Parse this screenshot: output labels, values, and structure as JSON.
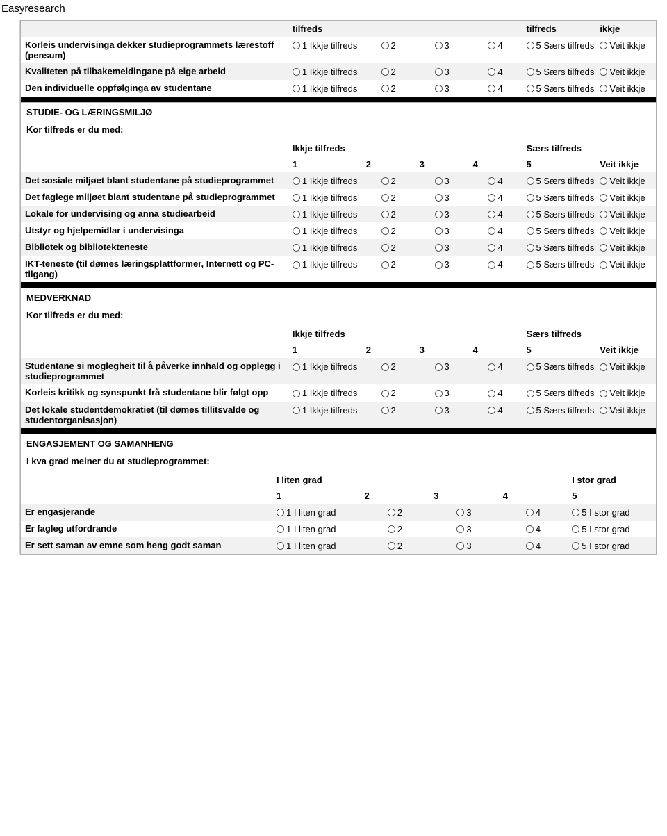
{
  "page_title": "Easyresearch",
  "scale_labels": {
    "low": "Ikkje tilfreds",
    "high": "Særs tilfreds",
    "na": "Veit ikkje",
    "low_deg": "I liten grad",
    "high_deg": "I stor grad"
  },
  "nums": {
    "n1": "1",
    "n2": "2",
    "n3": "3",
    "n4": "4",
    "n5": "5"
  },
  "opt": {
    "o1": "1 Ikkje tilfreds",
    "o2": "2",
    "o3": "3",
    "o4": "4",
    "o5": "5 Særs tilfreds",
    "ov": "Veit ikkje",
    "d1": "1 I liten grad",
    "d5": "5 I stor grad"
  },
  "tophdr": {
    "left": "tilfreds",
    "right1": "tilfreds",
    "right2": "ikkje"
  },
  "section0_rows": [
    "Korleis undervisinga dekker studieprogrammets lærestoff (pensum)",
    "Kvaliteten på tilbakemeldingane på eige arbeid",
    "Den individuelle oppfølginga av studentane"
  ],
  "section1": {
    "title": "STUDIE- OG LÆRINGSMILJØ",
    "sub": "Kor tilfreds er du med:",
    "rows": [
      "Det sosiale miljøet blant studentane på studieprogrammet",
      "Det faglege miljøet blant studentane på studieprogrammet",
      "Lokale for undervising og anna studiearbeid",
      "Utstyr og hjelpemidlar i undervisinga",
      "Bibliotek og bibliotekteneste",
      "IKT-teneste (til dømes læringsplattformer, Internett og PC-tilgang)"
    ]
  },
  "section2": {
    "title": "MEDVERKNAD",
    "sub": "Kor tilfreds er du med:",
    "rows": [
      "Studentane si moglegheit til å påverke innhald og opplegg i studieprogrammet",
      "Korleis kritikk og synspunkt frå studentane blir følgt opp",
      "Det lokale studentdemokratiet (til dømes tillitsvalde og studentorganisasjon)"
    ]
  },
  "section3": {
    "title": "ENGASJEMENT OG SAMANHENG",
    "sub": "I kva grad meiner du at studieprogrammet:",
    "rows": [
      "Er engasjerande",
      "Er fagleg utfordrande",
      "Er sett saman av emne som heng godt saman"
    ]
  }
}
